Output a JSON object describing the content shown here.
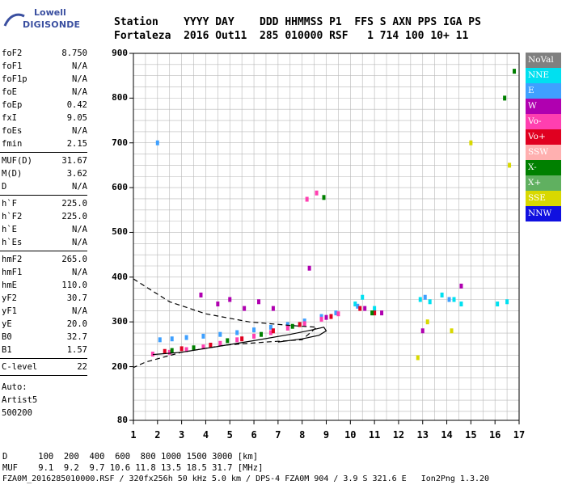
{
  "logo": {
    "top": "Lowell",
    "bottom": "DIGISONDE"
  },
  "header": {
    "line1": "Station    YYYY DAY    DDD HHMMSS P1  FFS S AXN PPS IGA PS",
    "line2": "Fortaleza  2016 Out11  285 010000 RSF   1 714 100 10+ 11"
  },
  "params": {
    "group1": [
      {
        "k": "foF2",
        "v": "8.750"
      },
      {
        "k": "foF1",
        "v": "N/A"
      },
      {
        "k": "foF1p",
        "v": "N/A"
      },
      {
        "k": "foE",
        "v": "N/A"
      },
      {
        "k": "foEp",
        "v": "0.42"
      },
      {
        "k": "fxI",
        "v": "9.05"
      },
      {
        "k": "foEs",
        "v": "N/A"
      },
      {
        "k": "fmin",
        "v": "2.15"
      }
    ],
    "group2": [
      {
        "k": "MUF(D)",
        "v": "31.67"
      },
      {
        "k": "M(D)",
        "v": "3.62"
      },
      {
        "k": "D",
        "v": "N/A"
      }
    ],
    "group3": [
      {
        "k": "h`F",
        "v": "225.0"
      },
      {
        "k": "h`F2",
        "v": "225.0"
      },
      {
        "k": "h`E",
        "v": "N/A"
      },
      {
        "k": "h`Es",
        "v": "N/A"
      }
    ],
    "group4": [
      {
        "k": "hmF2",
        "v": "265.0"
      },
      {
        "k": "hmF1",
        "v": "N/A"
      },
      {
        "k": "hmE",
        "v": "110.0"
      },
      {
        "k": "yF2",
        "v": "30.7"
      },
      {
        "k": "yF1",
        "v": "N/A"
      },
      {
        "k": "yE",
        "v": "20.0"
      },
      {
        "k": "B0",
        "v": "32.7"
      },
      {
        "k": "B1",
        "v": "1.57"
      }
    ],
    "group5": [
      {
        "k": "C-level",
        "v": "22"
      }
    ],
    "auto": [
      "Auto:",
      "Artist5",
      "500200"
    ]
  },
  "legend": [
    {
      "label": "NoVal",
      "color": "#808080"
    },
    {
      "label": "NNE",
      "color": "#00e0f0"
    },
    {
      "label": "E",
      "color": "#3fa0ff"
    },
    {
      "label": "W",
      "color": "#b000b0"
    },
    {
      "label": "Vo-",
      "color": "#ff3fb0"
    },
    {
      "label": "Vo+",
      "color": "#e00020"
    },
    {
      "label": "SSW",
      "color": "#ffb0b0"
    },
    {
      "label": "X-",
      "color": "#008000"
    },
    {
      "label": "X+",
      "color": "#60b060"
    },
    {
      "label": "SSE",
      "color": "#d8d800"
    },
    {
      "label": "NNW",
      "color": "#1010e0"
    }
  ],
  "chart_data": {
    "type": "scatter",
    "title": "",
    "xlabel": "",
    "ylabel": "",
    "x_ticks": [
      "1",
      "2",
      "3",
      "4",
      "5",
      "6",
      "7",
      "8",
      "9",
      "10",
      "11",
      "12",
      "13",
      "14",
      "15",
      "16",
      "17"
    ],
    "y_ticks": [
      "80",
      "200",
      "300",
      "400",
      "500",
      "600",
      "700",
      "800",
      "900"
    ],
    "xlim": [
      1,
      17
    ],
    "ylim": [
      80,
      900
    ],
    "series": [
      {
        "name": "NNE",
        "color": "#00e0f0",
        "points": [
          [
            10.2,
            340
          ],
          [
            10.5,
            355
          ],
          [
            11.0,
            330
          ],
          [
            12.9,
            350
          ],
          [
            13.3,
            345
          ],
          [
            13.8,
            360
          ],
          [
            14.3,
            350
          ],
          [
            14.6,
            340
          ],
          [
            16.1,
            340
          ],
          [
            16.5,
            345
          ]
        ]
      },
      {
        "name": "E",
        "color": "#3fa0ff",
        "points": [
          [
            2.0,
            700
          ],
          [
            2.1,
            260
          ],
          [
            2.6,
            262
          ],
          [
            3.2,
            265
          ],
          [
            3.9,
            268
          ],
          [
            4.6,
            272
          ],
          [
            5.3,
            276
          ],
          [
            6.0,
            282
          ],
          [
            6.7,
            288
          ],
          [
            7.4,
            294
          ],
          [
            8.1,
            302
          ],
          [
            8.8,
            312
          ],
          [
            9.4,
            320
          ],
          [
            10.3,
            335
          ],
          [
            13.1,
            355
          ],
          [
            14.1,
            350
          ]
        ]
      },
      {
        "name": "W",
        "color": "#b000b0",
        "points": [
          [
            3.8,
            360
          ],
          [
            4.5,
            340
          ],
          [
            5.0,
            350
          ],
          [
            5.6,
            330
          ],
          [
            6.2,
            345
          ],
          [
            6.8,
            330
          ],
          [
            8.3,
            420
          ],
          [
            9.0,
            310
          ],
          [
            10.6,
            330
          ],
          [
            11.3,
            320
          ],
          [
            13.0,
            280
          ],
          [
            14.6,
            380
          ]
        ]
      },
      {
        "name": "Vo-",
        "color": "#ff3fb0",
        "points": [
          [
            1.8,
            228
          ],
          [
            2.5,
            232
          ],
          [
            3.2,
            238
          ],
          [
            3.9,
            244
          ],
          [
            4.6,
            252
          ],
          [
            5.3,
            260
          ],
          [
            6.0,
            268
          ],
          [
            6.7,
            276
          ],
          [
            7.4,
            286
          ],
          [
            8.1,
            296
          ],
          [
            8.8,
            306
          ],
          [
            9.5,
            318
          ],
          [
            8.2,
            574
          ],
          [
            8.6,
            588
          ]
        ]
      },
      {
        "name": "Vo+",
        "color": "#e00020",
        "points": [
          [
            2.3,
            234
          ],
          [
            3.0,
            240
          ],
          [
            4.2,
            248
          ],
          [
            5.5,
            262
          ],
          [
            6.8,
            280
          ],
          [
            7.9,
            294
          ],
          [
            9.2,
            312
          ],
          [
            10.4,
            330
          ],
          [
            11.0,
            320
          ]
        ]
      },
      {
        "name": "X-",
        "color": "#008000",
        "points": [
          [
            2.6,
            236
          ],
          [
            3.5,
            242
          ],
          [
            4.9,
            258
          ],
          [
            6.3,
            272
          ],
          [
            7.6,
            290
          ],
          [
            8.9,
            578
          ],
          [
            16.4,
            800
          ],
          [
            16.8,
            860
          ],
          [
            10.9,
            320
          ]
        ]
      },
      {
        "name": "SSE",
        "color": "#d8d800",
        "points": [
          [
            13.2,
            300
          ],
          [
            14.2,
            280
          ],
          [
            12.8,
            220
          ],
          [
            15.0,
            700
          ],
          [
            16.6,
            650
          ]
        ]
      }
    ],
    "curves": [
      {
        "name": "profile",
        "style": "solid",
        "points": [
          [
            1.8,
            227
          ],
          [
            3.0,
            232
          ],
          [
            4.5,
            245
          ],
          [
            6.0,
            258
          ],
          [
            7.5,
            272
          ],
          [
            8.4,
            282
          ],
          [
            8.9,
            288
          ],
          [
            9.0,
            280
          ],
          [
            8.7,
            270
          ],
          [
            8.0,
            262
          ],
          [
            7.0,
            255
          ]
        ]
      },
      {
        "name": "dashed",
        "style": "dashed",
        "points": [
          [
            1.0,
            396
          ],
          [
            1.7,
            372
          ],
          [
            2.5,
            345
          ],
          [
            4.0,
            318
          ],
          [
            5.8,
            300
          ],
          [
            7.5,
            292
          ],
          [
            8.6,
            288
          ],
          [
            8.0,
            260
          ],
          [
            6.5,
            255
          ],
          [
            4.8,
            248
          ],
          [
            3.0,
            232
          ],
          [
            1.5,
            210
          ],
          [
            1.0,
            198
          ]
        ]
      }
    ]
  },
  "footer": {
    "line1": "D      100  200  400  600  800 1000 1500 3000 [km]",
    "line2": "MUF    9.1  9.2  9.7 10.6 11.8 13.5 18.5 31.7 [MHz]",
    "line3": "FZA0M_2016285010000.RSF / 320fx256h 50 kHz 5.0 km / DPS-4 FZA0M 904 / 3.9 S 321.6 E   Ion2Png 1.3.20"
  }
}
